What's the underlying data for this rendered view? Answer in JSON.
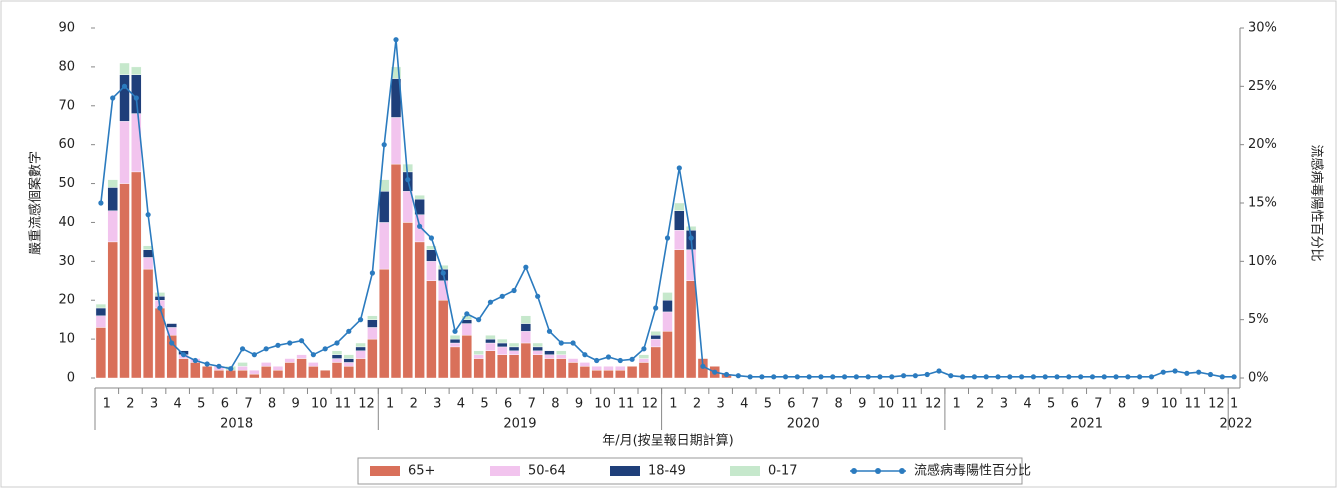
{
  "chart_data": {
    "type": "bar",
    "y_label": "嚴重流感個案數字",
    "y2_label": "流感病毒陽性百分比",
    "x_label": "年/月(按呈報日期計算)",
    "categories": [
      "1",
      null,
      "2",
      null,
      "3",
      null,
      "4",
      null,
      "5",
      null,
      "6",
      null,
      "7",
      null,
      "8",
      null,
      "9",
      null,
      "10",
      null,
      "11",
      null,
      "12",
      null,
      "1",
      null,
      "2",
      null,
      "3",
      null,
      "4",
      null,
      "5",
      null,
      "6",
      null,
      "7",
      null,
      "8",
      null,
      "9",
      null,
      "10",
      null,
      "11",
      null,
      "12",
      null,
      "1",
      null,
      "2",
      null,
      "3",
      null,
      "4",
      null,
      "5",
      null,
      "6",
      null,
      "7",
      null,
      "8",
      null,
      "9",
      null,
      "10",
      null,
      "11",
      null,
      "12",
      null,
      "1",
      null,
      "2",
      null,
      "3",
      null,
      "4",
      null,
      "5",
      null,
      "6",
      null,
      "7",
      null,
      "8",
      null,
      "9",
      null,
      "10",
      null,
      "11",
      null,
      "12",
      null,
      "1"
    ],
    "years": [
      "2018",
      "2019",
      "2020",
      "2021",
      "2022"
    ],
    "ylim": [
      0,
      90
    ],
    "yticks": [
      0,
      10,
      20,
      30,
      40,
      50,
      60,
      70,
      80,
      90
    ],
    "y2lim": [
      0,
      30
    ],
    "y2ticks": [
      {
        "value": 0,
        "label": "0%"
      },
      {
        "value": 5,
        "label": "5%"
      },
      {
        "value": 10,
        "label": "10%"
      },
      {
        "value": 15,
        "label": "15%"
      },
      {
        "value": 20,
        "label": "20%"
      },
      {
        "value": 25,
        "label": "25%"
      },
      {
        "value": 30,
        "label": "30%"
      }
    ],
    "series": [
      {
        "name": "65+",
        "color": "#d9705a",
        "values": [
          13,
          35,
          50,
          53,
          28,
          18,
          11,
          5,
          4,
          3,
          2,
          2,
          2,
          1,
          3,
          2,
          4,
          5,
          3,
          2,
          4,
          3,
          5,
          10,
          28,
          55,
          40,
          35,
          25,
          20,
          8,
          11,
          5,
          7,
          6,
          6,
          9,
          6,
          5,
          5,
          4,
          3,
          2,
          2,
          2,
          3,
          4,
          8,
          12,
          33,
          25,
          5,
          3,
          1,
          0,
          0,
          0,
          0,
          0,
          0,
          0,
          0,
          0,
          0,
          0,
          0,
          0,
          0,
          0,
          0,
          0,
          0,
          0,
          0,
          0,
          0,
          0,
          0,
          0,
          0,
          0,
          0,
          0,
          0,
          0,
          0,
          0,
          0,
          0,
          0,
          0,
          0,
          0,
          0,
          0,
          0,
          0
        ]
      },
      {
        "name": "50-64",
        "color": "#f2c4ee",
        "values": [
          3,
          8,
          16,
          15,
          3,
          2,
          2,
          1,
          1,
          0,
          1,
          0,
          1,
          1,
          1,
          1,
          1,
          1,
          1,
          0,
          1,
          1,
          2,
          3,
          12,
          12,
          8,
          7,
          5,
          5,
          1,
          3,
          1,
          2,
          2,
          1,
          3,
          1,
          1,
          1,
          1,
          1,
          1,
          1,
          1,
          0,
          1,
          2,
          5,
          5,
          8,
          0,
          0,
          0,
          0,
          0,
          0,
          0,
          0,
          0,
          0,
          0,
          0,
          0,
          0,
          0,
          0,
          0,
          0,
          0,
          0,
          0,
          0,
          0,
          0,
          0,
          0,
          0,
          0,
          0,
          0,
          0,
          0,
          0,
          0,
          0,
          0,
          0,
          0,
          0,
          0,
          0,
          0,
          0,
          0,
          0,
          0
        ]
      },
      {
        "name": "18-49",
        "color": "#1f3f7a",
        "values": [
          2,
          6,
          12,
          10,
          2,
          1,
          1,
          1,
          0,
          0,
          0,
          0,
          0,
          0,
          0,
          0,
          0,
          0,
          0,
          0,
          1,
          1,
          1,
          2,
          8,
          10,
          5,
          4,
          3,
          3,
          1,
          1,
          0,
          1,
          1,
          1,
          2,
          1,
          1,
          0,
          0,
          0,
          0,
          0,
          0,
          0,
          0,
          1,
          3,
          5,
          5,
          0,
          0,
          0,
          0,
          0,
          0,
          0,
          0,
          0,
          0,
          0,
          0,
          0,
          0,
          0,
          0,
          0,
          0,
          0,
          0,
          0,
          0,
          0,
          0,
          0,
          0,
          0,
          0,
          0,
          0,
          0,
          0,
          0,
          0,
          0,
          0,
          0,
          0,
          0,
          0,
          0,
          0,
          0,
          0,
          0,
          0
        ]
      },
      {
        "name": "0-17",
        "color": "#c6e8cc",
        "values": [
          1,
          2,
          3,
          2,
          1,
          1,
          0,
          0,
          0,
          0,
          0,
          1,
          1,
          0,
          0,
          0,
          0,
          0,
          0,
          0,
          1,
          1,
          1,
          1,
          3,
          3,
          2,
          1,
          1,
          1,
          1,
          1,
          1,
          1,
          1,
          1,
          2,
          1,
          0,
          1,
          0,
          0,
          0,
          0,
          0,
          0,
          1,
          1,
          2,
          2,
          1,
          0,
          0,
          0,
          0,
          0,
          0,
          0,
          0,
          0,
          0,
          0,
          0,
          0,
          0,
          0,
          0,
          0,
          0,
          0,
          0,
          0,
          0,
          0,
          0,
          0,
          0,
          0,
          0,
          0,
          0,
          0,
          0,
          0,
          0,
          0,
          0,
          0,
          0,
          0,
          0,
          0,
          0,
          0,
          0,
          0,
          0
        ]
      },
      {
        "name": "流感病毒陽性百分比",
        "color": "#2b7bbf",
        "axis": "y2",
        "values": [
          15,
          24,
          25,
          24,
          14,
          6,
          3,
          2,
          1.5,
          1.2,
          1,
          0.8,
          2.5,
          2,
          2.5,
          2.8,
          3,
          3.2,
          2,
          2.5,
          3,
          4,
          5,
          9,
          20,
          29,
          17,
          13,
          12,
          9,
          4,
          5.5,
          5,
          6.5,
          7,
          7.5,
          9.5,
          7,
          4,
          3,
          3,
          2,
          1.5,
          1.8,
          1.5,
          1.6,
          2.5,
          6,
          12,
          18,
          12,
          1,
          0.5,
          0.3,
          0.2,
          0.1,
          0.1,
          0.1,
          0.1,
          0.1,
          0.1,
          0.1,
          0.1,
          0.1,
          0.1,
          0.1,
          0.1,
          0.1,
          0.2,
          0.2,
          0.3,
          0.6,
          0.2,
          0.1,
          0.1,
          0.1,
          0.1,
          0.1,
          0.1,
          0.1,
          0.1,
          0.1,
          0.1,
          0.1,
          0.1,
          0.1,
          0.1,
          0.1,
          0.1,
          0.1,
          0.5,
          0.6,
          0.4,
          0.5,
          0.3,
          0.1,
          0.1
        ]
      }
    ]
  }
}
